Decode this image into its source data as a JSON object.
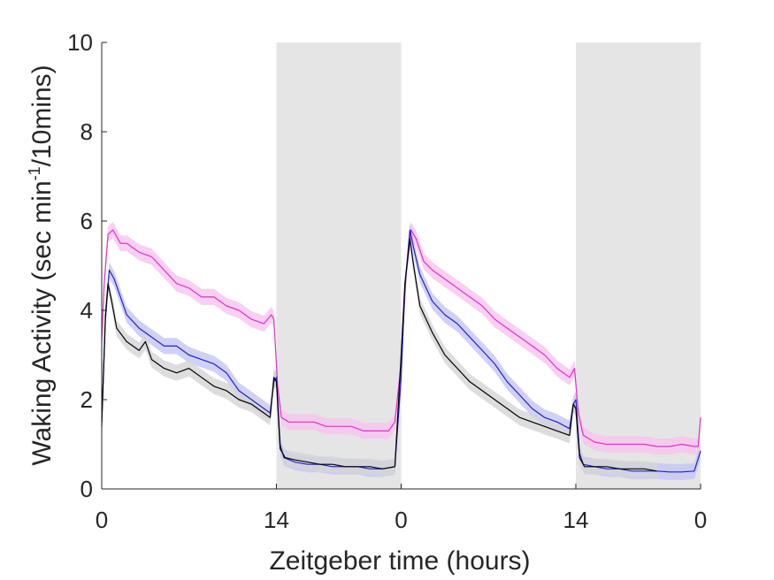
{
  "chart_data": {
    "type": "line",
    "xlabel": "Zeitgeber time (hours)",
    "ylabel": {
      "main": "Waking Activity (sec min",
      "sup": "-1",
      "tail": "/10mins)"
    },
    "ylim": [
      0,
      10
    ],
    "yticks": [
      0,
      2,
      4,
      6,
      8,
      10
    ],
    "xlim": [
      0,
      48
    ],
    "xticks": [
      {
        "value": 0,
        "label": "0"
      },
      {
        "value": 14,
        "label": "14"
      },
      {
        "value": 24,
        "label": "0"
      },
      {
        "value": 38,
        "label": "14"
      },
      {
        "value": 48,
        "label": "0"
      }
    ],
    "dark_periods": [
      [
        14,
        24
      ],
      [
        38,
        48
      ]
    ],
    "grid": false,
    "series": [
      {
        "color": "#e62ecc",
        "band_color": "#f7c3ef",
        "points": [
          [
            0,
            3.3
          ],
          [
            0.2,
            4.6
          ],
          [
            0.5,
            5.7
          ],
          [
            0.9,
            5.8
          ],
          [
            1.5,
            5.5
          ],
          [
            2,
            5.5
          ],
          [
            3,
            5.3
          ],
          [
            4,
            5.2
          ],
          [
            5,
            4.9
          ],
          [
            6,
            4.6
          ],
          [
            7,
            4.5
          ],
          [
            8,
            4.3
          ],
          [
            9,
            4.3
          ],
          [
            10,
            4.1
          ],
          [
            11,
            4.0
          ],
          [
            12,
            3.8
          ],
          [
            13,
            3.7
          ],
          [
            13.6,
            3.9
          ],
          [
            13.8,
            3.8
          ],
          [
            14.1,
            2.3
          ],
          [
            14.4,
            1.6
          ],
          [
            15,
            1.5
          ],
          [
            16,
            1.5
          ],
          [
            17,
            1.5
          ],
          [
            18,
            1.4
          ],
          [
            19,
            1.4
          ],
          [
            20,
            1.4
          ],
          [
            21,
            1.3
          ],
          [
            22,
            1.3
          ],
          [
            23,
            1.3
          ],
          [
            23.5,
            1.5
          ],
          [
            24,
            2.8
          ],
          [
            24.4,
            4.8
          ],
          [
            24.8,
            5.8
          ],
          [
            25.2,
            5.6
          ],
          [
            25.8,
            5.1
          ],
          [
            26.5,
            4.9
          ],
          [
            27.5,
            4.7
          ],
          [
            28.5,
            4.5
          ],
          [
            29.5,
            4.3
          ],
          [
            30.5,
            4.1
          ],
          [
            31.5,
            3.8
          ],
          [
            32.5,
            3.6
          ],
          [
            33.5,
            3.4
          ],
          [
            34.5,
            3.2
          ],
          [
            35.5,
            3.0
          ],
          [
            36.5,
            2.7
          ],
          [
            37.5,
            2.5
          ],
          [
            37.9,
            2.7
          ],
          [
            38.2,
            1.7
          ],
          [
            38.6,
            1.2
          ],
          [
            39.5,
            1.05
          ],
          [
            40.5,
            1.0
          ],
          [
            41.5,
            1.0
          ],
          [
            42.5,
            1.0
          ],
          [
            43.5,
            1.0
          ],
          [
            44.5,
            0.95
          ],
          [
            45.5,
            0.95
          ],
          [
            46.5,
            1.0
          ],
          [
            47.5,
            0.95
          ],
          [
            47.8,
            0.95
          ],
          [
            48,
            1.6
          ]
        ]
      },
      {
        "color": "#2020d8",
        "band_color": "#c6c6f5",
        "points": [
          [
            0,
            1.5
          ],
          [
            0.3,
            3.8
          ],
          [
            0.6,
            4.9
          ],
          [
            1,
            4.7
          ],
          [
            1.5,
            4.3
          ],
          [
            2,
            3.9
          ],
          [
            3,
            3.6
          ],
          [
            4,
            3.4
          ],
          [
            5,
            3.2
          ],
          [
            6,
            3.2
          ],
          [
            7,
            3.0
          ],
          [
            8,
            2.9
          ],
          [
            9,
            2.8
          ],
          [
            10,
            2.6
          ],
          [
            11,
            2.2
          ],
          [
            12,
            2.0
          ],
          [
            13,
            1.8
          ],
          [
            13.5,
            1.7
          ],
          [
            13.8,
            2.4
          ],
          [
            14,
            2.5
          ],
          [
            14.3,
            1.0
          ],
          [
            14.6,
            0.7
          ],
          [
            15.5,
            0.6
          ],
          [
            16.5,
            0.55
          ],
          [
            17.5,
            0.55
          ],
          [
            18.5,
            0.5
          ],
          [
            19.5,
            0.5
          ],
          [
            20.5,
            0.5
          ],
          [
            21.5,
            0.45
          ],
          [
            22.5,
            0.45
          ],
          [
            23.5,
            0.5
          ],
          [
            24,
            2.5
          ],
          [
            24.3,
            4.5
          ],
          [
            24.7,
            5.8
          ],
          [
            25,
            5.4
          ],
          [
            25.5,
            4.8
          ],
          [
            26.5,
            4.2
          ],
          [
            27.5,
            3.9
          ],
          [
            28.5,
            3.7
          ],
          [
            29.5,
            3.4
          ],
          [
            30.5,
            3.1
          ],
          [
            31.5,
            2.8
          ],
          [
            32.5,
            2.4
          ],
          [
            33.5,
            2.1
          ],
          [
            34.5,
            1.8
          ],
          [
            35.5,
            1.6
          ],
          [
            36.5,
            1.5
          ],
          [
            37.5,
            1.35
          ],
          [
            37.8,
            1.9
          ],
          [
            38,
            2.0
          ],
          [
            38.3,
            0.8
          ],
          [
            38.6,
            0.55
          ],
          [
            39.5,
            0.5
          ],
          [
            40.5,
            0.45
          ],
          [
            41.5,
            0.45
          ],
          [
            42.5,
            0.4
          ],
          [
            43.5,
            0.4
          ],
          [
            44.5,
            0.4
          ],
          [
            45.5,
            0.38
          ],
          [
            46.5,
            0.38
          ],
          [
            47.5,
            0.4
          ],
          [
            48,
            0.85
          ]
        ]
      },
      {
        "color": "#000000",
        "band_color": "#d4d4d4",
        "points": [
          [
            0,
            1.4
          ],
          [
            0.3,
            3.9
          ],
          [
            0.5,
            4.6
          ],
          [
            0.8,
            4.2
          ],
          [
            1.2,
            3.6
          ],
          [
            2,
            3.3
          ],
          [
            3,
            3.1
          ],
          [
            3.5,
            3.3
          ],
          [
            4,
            2.9
          ],
          [
            5,
            2.7
          ],
          [
            6,
            2.6
          ],
          [
            7,
            2.7
          ],
          [
            8,
            2.5
          ],
          [
            9,
            2.3
          ],
          [
            10,
            2.2
          ],
          [
            11,
            2.0
          ],
          [
            12,
            1.9
          ],
          [
            13,
            1.7
          ],
          [
            13.5,
            1.6
          ],
          [
            13.8,
            2.5
          ],
          [
            14,
            2.4
          ],
          [
            14.3,
            0.9
          ],
          [
            14.7,
            0.7
          ],
          [
            15.5,
            0.65
          ],
          [
            16.5,
            0.6
          ],
          [
            17.5,
            0.55
          ],
          [
            18.5,
            0.55
          ],
          [
            19.5,
            0.5
          ],
          [
            20.5,
            0.5
          ],
          [
            21.5,
            0.5
          ],
          [
            22.5,
            0.45
          ],
          [
            23.5,
            0.5
          ],
          [
            24,
            3.0
          ],
          [
            24.3,
            4.6
          ],
          [
            24.7,
            5.6
          ],
          [
            25,
            5.0
          ],
          [
            25.5,
            4.1
          ],
          [
            26.5,
            3.5
          ],
          [
            27.5,
            3.0
          ],
          [
            28.5,
            2.7
          ],
          [
            29.5,
            2.4
          ],
          [
            30.5,
            2.2
          ],
          [
            31.5,
            2.0
          ],
          [
            32.5,
            1.8
          ],
          [
            33.5,
            1.6
          ],
          [
            34.5,
            1.5
          ],
          [
            35.5,
            1.4
          ],
          [
            36.5,
            1.3
          ],
          [
            37.5,
            1.2
          ],
          [
            37.8,
            1.9
          ],
          [
            38,
            1.8
          ],
          [
            38.3,
            0.7
          ],
          [
            38.7,
            0.5
          ],
          [
            39.5,
            0.5
          ],
          [
            40.5,
            0.5
          ],
          [
            41.5,
            0.45
          ],
          [
            42.5,
            0.45
          ],
          [
            43.5,
            0.45
          ],
          [
            44.5,
            0.4
          ]
        ]
      }
    ]
  }
}
